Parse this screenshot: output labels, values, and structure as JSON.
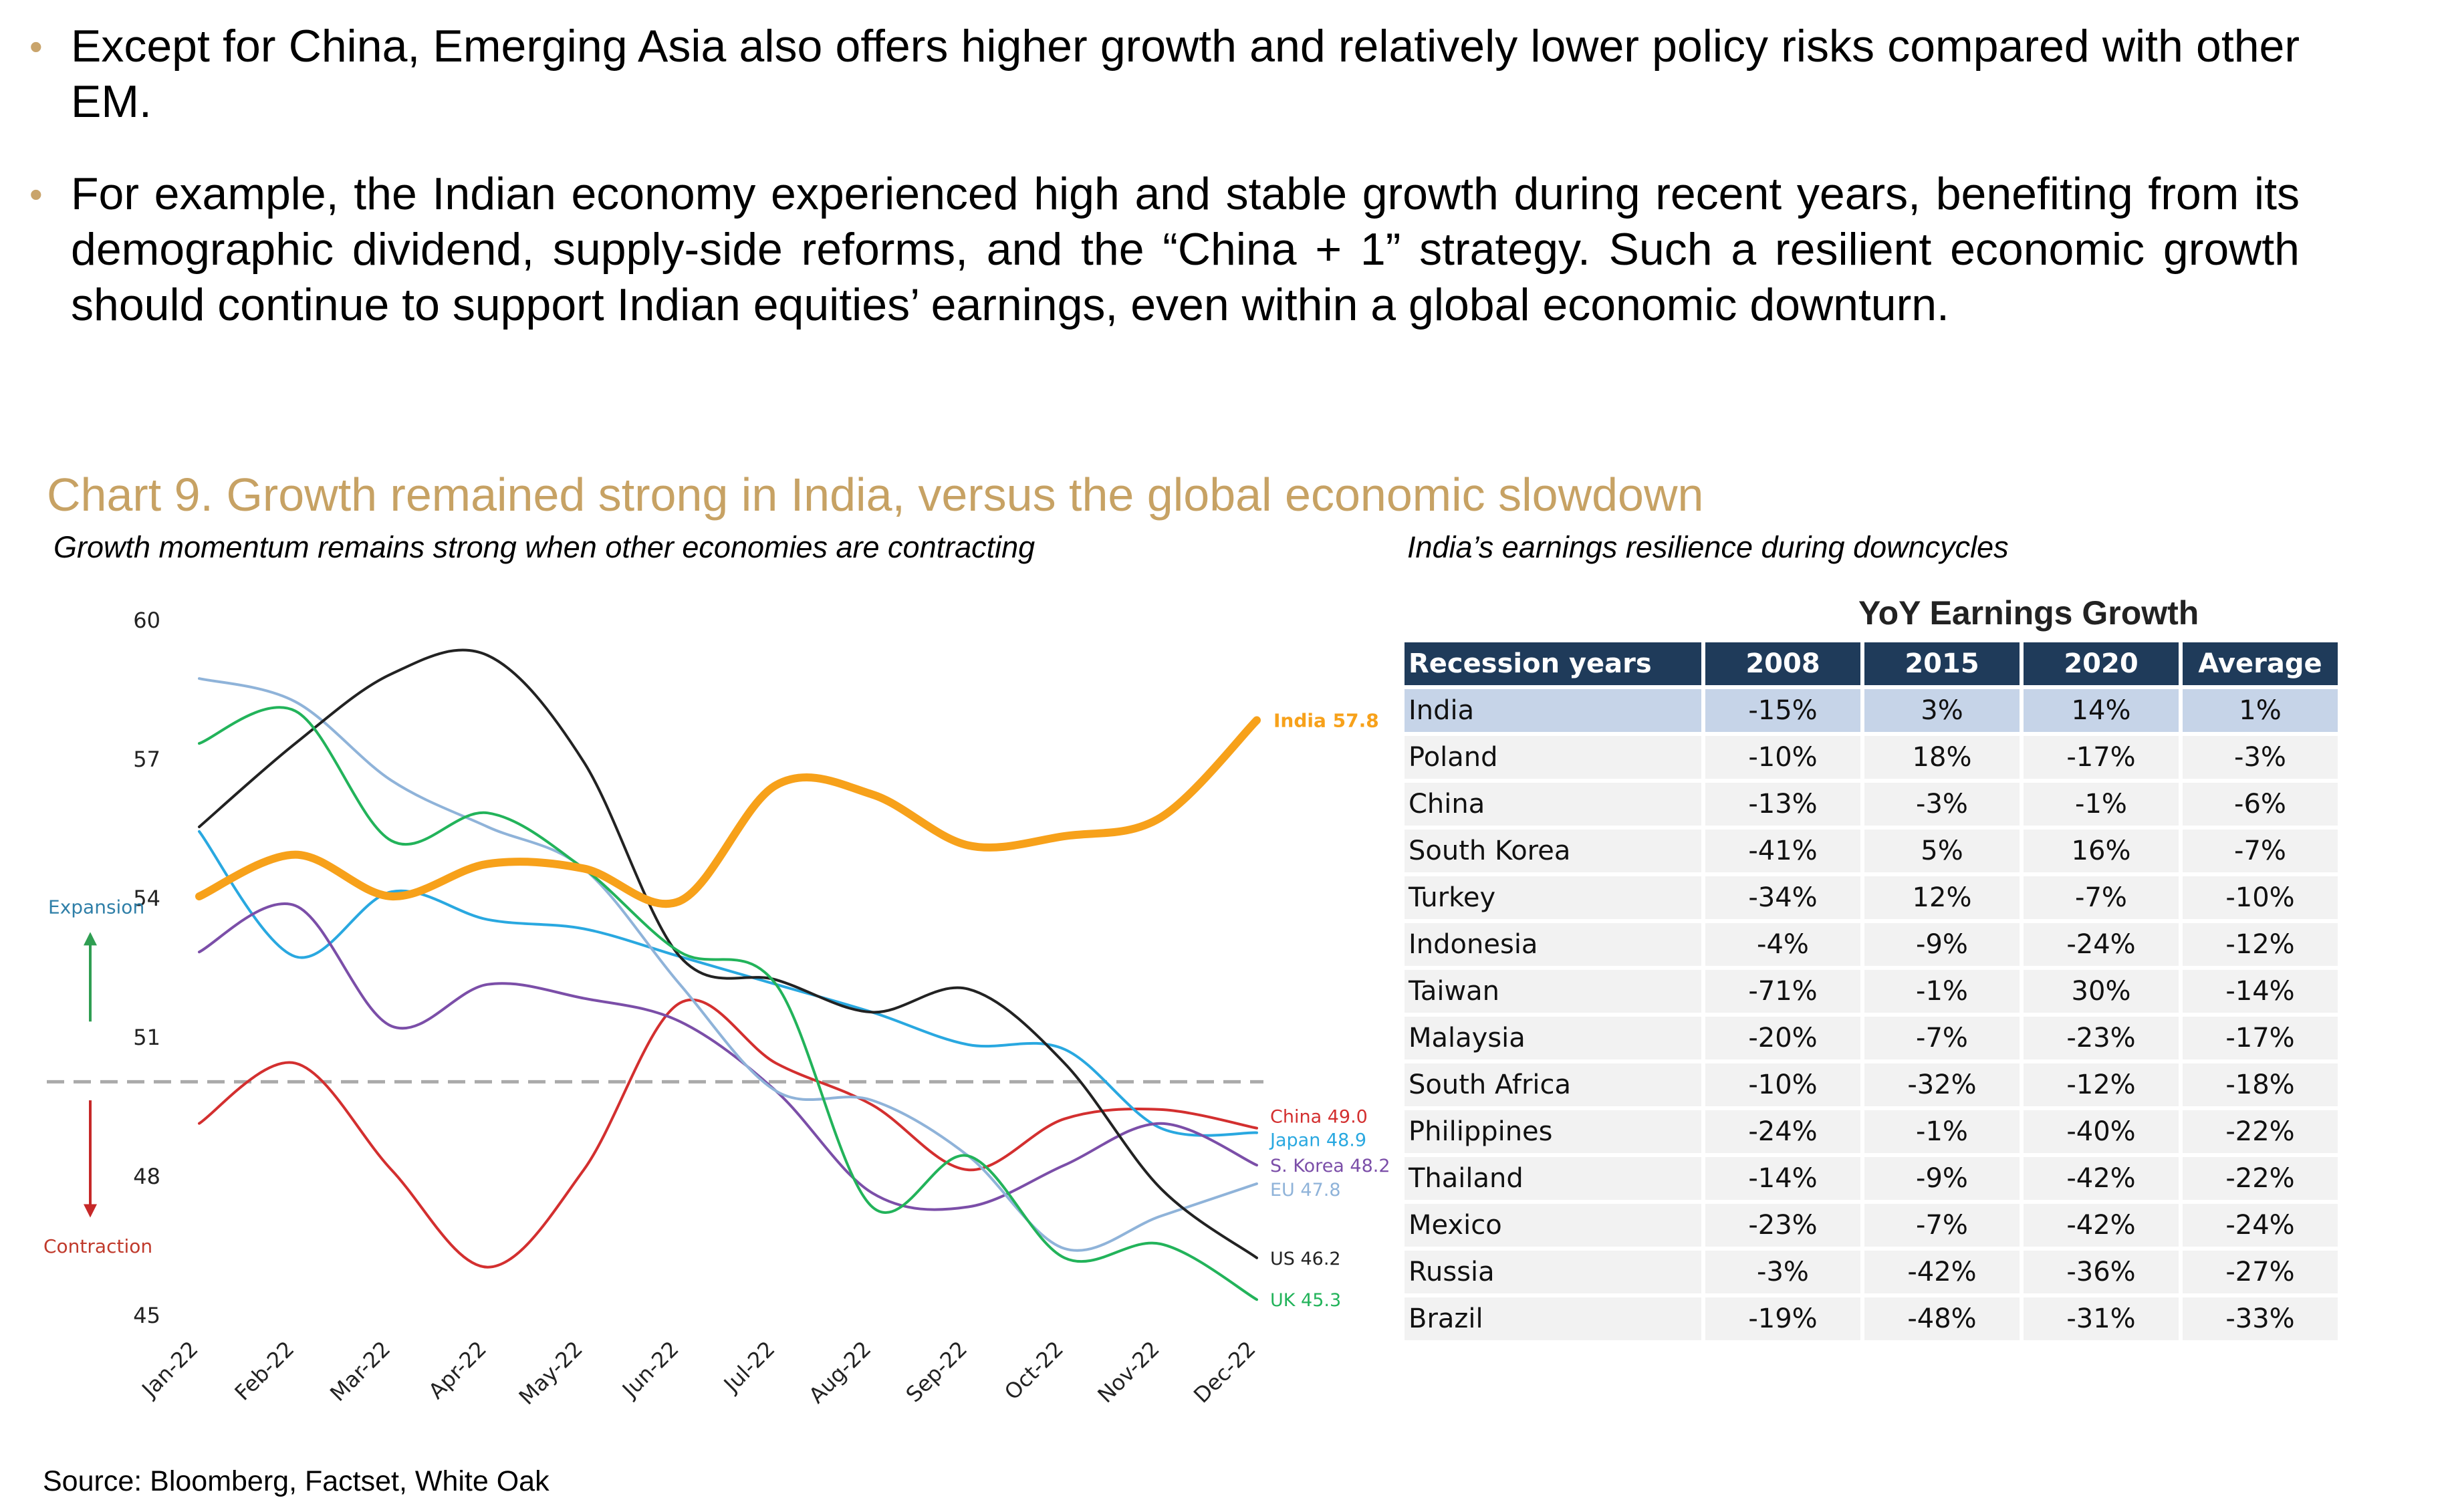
{
  "bullets": [
    "Except for China, Emerging Asia also offers higher growth and relatively lower policy risks compared with other EM.",
    "For example, the Indian economy experienced high and stable growth during recent years, benefiting from its demographic dividend, supply-side reforms, and the “China + 1” strategy. Such a resilient economic growth should continue to support Indian equities’ earnings, even within a global economic downturn."
  ],
  "bullet_marker": "•",
  "chart_title": "Chart 9. Growth remained strong in India, versus the global economic slowdown",
  "subtitle_left": "Growth momentum remains strong when other economies are contracting",
  "subtitle_right": "India’s earnings resilience during downcycles",
  "source": "Source: Bloomberg, Factset, White Oak",
  "colors": {
    "accent_gold": "#c7a264",
    "table_header": "#1f3b5a",
    "table_highlight": "#c6d4e8",
    "expansion": "#2f9e52",
    "contraction": "#c62828"
  },
  "chart_data": [
    {
      "type": "line",
      "title": "Growth momentum remains strong when other economies are contracting",
      "x": [
        "Jan-22",
        "Feb-22",
        "Mar-22",
        "Apr-22",
        "May-22",
        "Jun-22",
        "Jul-22",
        "Aug-22",
        "Sep-22",
        "Oct-22",
        "Nov-22",
        "Dec-22"
      ],
      "ylim": [
        45,
        60
      ],
      "yticks": [
        45,
        48,
        51,
        54,
        57,
        60
      ],
      "threshold": 50,
      "annotations": {
        "expansion": "Expansion",
        "contraction": "Contraction"
      },
      "series": [
        {
          "name": "India",
          "label": "India 57.8",
          "color": "#f7a11a",
          "width": 12,
          "values": [
            54.0,
            54.9,
            54.0,
            54.7,
            54.6,
            53.9,
            56.4,
            56.2,
            55.1,
            55.3,
            55.7,
            57.8
          ]
        },
        {
          "name": "China",
          "label": "China 49.0",
          "color": "#d32f2f",
          "width": 4,
          "values": [
            49.1,
            50.4,
            48.1,
            46.0,
            48.1,
            51.7,
            50.4,
            49.5,
            48.1,
            49.2,
            49.4,
            49.0
          ]
        },
        {
          "name": "Japan",
          "label": "Japan 48.9",
          "color": "#29a8e0",
          "width": 4,
          "values": [
            55.4,
            52.7,
            54.1,
            53.5,
            53.3,
            52.7,
            52.1,
            51.5,
            50.8,
            50.7,
            49.0,
            48.9
          ]
        },
        {
          "name": "S. Korea",
          "label": "S. Korea 48.2",
          "color": "#7b4ea8",
          "width": 4,
          "values": [
            52.8,
            53.8,
            51.2,
            52.1,
            51.8,
            51.3,
            49.8,
            47.6,
            47.3,
            48.2,
            49.1,
            48.2
          ]
        },
        {
          "name": "EU",
          "label": "EU 47.8",
          "color": "#8fb3d9",
          "width": 4,
          "values": [
            58.7,
            58.2,
            56.5,
            55.5,
            54.6,
            52.1,
            49.8,
            49.6,
            48.4,
            46.4,
            47.1,
            47.8
          ]
        },
        {
          "name": "US",
          "label": "US 46.2",
          "color": "#222222",
          "width": 4,
          "values": [
            55.5,
            57.3,
            58.8,
            59.2,
            56.9,
            52.7,
            52.2,
            51.5,
            52.0,
            50.4,
            47.7,
            46.2
          ]
        },
        {
          "name": "UK",
          "label": "UK 45.3",
          "color": "#22b35a",
          "width": 4,
          "values": [
            57.3,
            58.0,
            55.2,
            55.8,
            54.6,
            52.8,
            52.1,
            47.3,
            48.4,
            46.2,
            46.5,
            45.3
          ]
        }
      ]
    },
    {
      "type": "table",
      "title": "YoY Earnings Growth",
      "columns": [
        "Recession years",
        "2008",
        "2015",
        "2020",
        "Average"
      ],
      "highlight_row": 0,
      "rows": [
        [
          "India",
          "-15%",
          "3%",
          "14%",
          "1%"
        ],
        [
          "Poland",
          "-10%",
          "18%",
          "-17%",
          "-3%"
        ],
        [
          "China",
          "-13%",
          "-3%",
          "-1%",
          "-6%"
        ],
        [
          "South Korea",
          "-41%",
          "5%",
          "16%",
          "-7%"
        ],
        [
          "Turkey",
          "-34%",
          "12%",
          "-7%",
          "-10%"
        ],
        [
          "Indonesia",
          "-4%",
          "-9%",
          "-24%",
          "-12%"
        ],
        [
          "Taiwan",
          "-71%",
          "-1%",
          "30%",
          "-14%"
        ],
        [
          "Malaysia",
          "-20%",
          "-7%",
          "-23%",
          "-17%"
        ],
        [
          "South Africa",
          "-10%",
          "-32%",
          "-12%",
          "-18%"
        ],
        [
          "Philippines",
          "-24%",
          "-1%",
          "-40%",
          "-22%"
        ],
        [
          "Thailand",
          "-14%",
          "-9%",
          "-42%",
          "-22%"
        ],
        [
          "Mexico",
          "-23%",
          "-7%",
          "-42%",
          "-24%"
        ],
        [
          "Russia",
          "-3%",
          "-42%",
          "-36%",
          "-27%"
        ],
        [
          "Brazil",
          "-19%",
          "-48%",
          "-31%",
          "-33%"
        ]
      ]
    }
  ]
}
